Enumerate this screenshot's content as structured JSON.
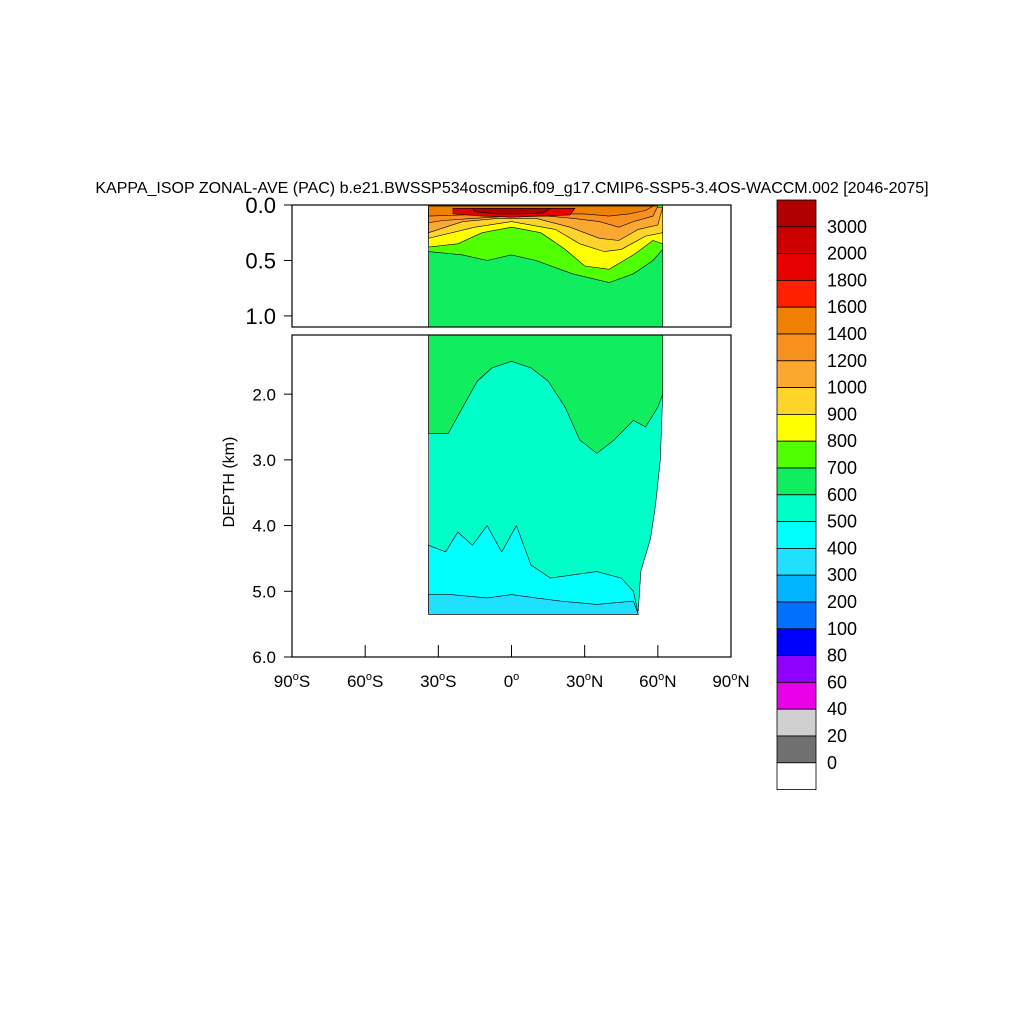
{
  "chart_data": {
    "type": "heatmap",
    "title": "KAPPA_ISOP ZONAL-AVE (PAC) b.e21.BWSSP534oscmip6.f09_g17.CMIP6-SSP5-3.4OS-WACCM.002 [2046-2075]",
    "ylabel": "DEPTH (km)",
    "xlabel": "",
    "xlim": [
      -90,
      90
    ],
    "ylim_upper": [
      0.0,
      1.1
    ],
    "ylim_lower": [
      1.1,
      6.0
    ],
    "x_ticks": [
      {
        "v": -90,
        "num": "90",
        "hemi": "S"
      },
      {
        "v": -60,
        "num": "60",
        "hemi": "S"
      },
      {
        "v": -30,
        "num": "30",
        "hemi": "S"
      },
      {
        "v": 0,
        "num": "0",
        "hemi": ""
      },
      {
        "v": 30,
        "num": "30",
        "hemi": "N"
      },
      {
        "v": 60,
        "num": "60",
        "hemi": "N"
      },
      {
        "v": 90,
        "num": "90",
        "hemi": "N"
      }
    ],
    "y_ticks_upper": [
      {
        "v": 0.0,
        "label": "0.0"
      },
      {
        "v": 0.5,
        "label": "0.5"
      },
      {
        "v": 1.0,
        "label": "1.0"
      }
    ],
    "y_ticks_lower": [
      {
        "v": 2.0,
        "label": "2.0"
      },
      {
        "v": 3.0,
        "label": "3.0"
      },
      {
        "v": 4.0,
        "label": "4.0"
      },
      {
        "v": 5.0,
        "label": "5.0"
      },
      {
        "v": 6.0,
        "label": "6.0"
      }
    ],
    "colorbar": {
      "levels": [
        "3000",
        "2000",
        "1800",
        "1600",
        "1400",
        "1200",
        "1000",
        "900",
        "800",
        "700",
        "600",
        "500",
        "400",
        "300",
        "200",
        "100",
        "80",
        "60",
        "40",
        "20",
        "0"
      ],
      "colors": [
        "#b00000",
        "#cc0000",
        "#e60000",
        "#ff2000",
        "#f08000",
        "#f89020",
        "#faa830",
        "#ffd42a",
        "#ffff00",
        "#50ff00",
        "#10ee60",
        "#00ffc8",
        "#00ffff",
        "#20e0ff",
        "#00b4ff",
        "#0070ff",
        "#0000ff",
        "#9000ff",
        "#e800e8",
        "#d0d0d0",
        "#707070",
        "#ffffff"
      ]
    },
    "regions": {
      "upper": [
        {
          "level": "700",
          "color": "#50ff00",
          "points": [
            [
              -34,
              0
            ],
            [
              62,
              0
            ],
            [
              62,
              1.1
            ],
            [
              -34,
              1.1
            ]
          ]
        },
        {
          "level": "600",
          "color": "#10ee60",
          "points": [
            [
              -34,
              0.42
            ],
            [
              -20,
              0.45
            ],
            [
              -10,
              0.5
            ],
            [
              0,
              0.45
            ],
            [
              10,
              0.5
            ],
            [
              25,
              0.62
            ],
            [
              40,
              0.7
            ],
            [
              50,
              0.62
            ],
            [
              58,
              0.5
            ],
            [
              62,
              0.4
            ],
            [
              62,
              1.1
            ],
            [
              -34,
              1.1
            ]
          ]
        },
        {
          "level": "800",
          "color": "#ffff00",
          "points": [
            [
              -34,
              0.05
            ],
            [
              62,
              0.05
            ],
            [
              62,
              0.35
            ],
            [
              58,
              0.32
            ],
            [
              50,
              0.45
            ],
            [
              40,
              0.58
            ],
            [
              30,
              0.55
            ],
            [
              22,
              0.4
            ],
            [
              12,
              0.25
            ],
            [
              0,
              0.2
            ],
            [
              -12,
              0.25
            ],
            [
              -22,
              0.35
            ],
            [
              -34,
              0.38
            ]
          ]
        },
        {
          "level": "900",
          "color": "#ffd42a",
          "points": [
            [
              -34,
              0.03
            ],
            [
              62,
              0.03
            ],
            [
              62,
              0.25
            ],
            [
              55,
              0.28
            ],
            [
              45,
              0.4
            ],
            [
              38,
              0.42
            ],
            [
              28,
              0.35
            ],
            [
              18,
              0.22
            ],
            [
              0,
              0.15
            ],
            [
              -15,
              0.2
            ],
            [
              -34,
              0.3
            ]
          ]
        },
        {
          "level": "1000",
          "color": "#faa830",
          "points": [
            [
              -34,
              0.02
            ],
            [
              62,
              0.02
            ],
            [
              60,
              0.18
            ],
            [
              52,
              0.22
            ],
            [
              44,
              0.32
            ],
            [
              36,
              0.3
            ],
            [
              24,
              0.2
            ],
            [
              10,
              0.12
            ],
            [
              -5,
              0.12
            ],
            [
              -20,
              0.15
            ],
            [
              -34,
              0.25
            ]
          ]
        },
        {
          "level": "1200",
          "color": "#f89020",
          "points": [
            [
              -34,
              0.01
            ],
            [
              60,
              0.01
            ],
            [
              58,
              0.1
            ],
            [
              50,
              0.15
            ],
            [
              44,
              0.2
            ],
            [
              36,
              0.15
            ],
            [
              25,
              0.12
            ],
            [
              15,
              0.1
            ],
            [
              0,
              0.1
            ],
            [
              -15,
              0.12
            ],
            [
              -28,
              0.14
            ],
            [
              -34,
              0.16
            ]
          ]
        },
        {
          "level": "1400",
          "color": "#f08000",
          "points": [
            [
              -34,
              0.01
            ],
            [
              58,
              0.01
            ],
            [
              55,
              0.05
            ],
            [
              48,
              0.08
            ],
            [
              40,
              0.1
            ],
            [
              30,
              0.08
            ],
            [
              20,
              0.08
            ],
            [
              10,
              0.08
            ],
            [
              -5,
              0.08
            ],
            [
              -20,
              0.09
            ],
            [
              -34,
              0.1
            ]
          ]
        },
        {
          "level": "1800",
          "color": "#e60000",
          "points": [
            [
              -24,
              0.03
            ],
            [
              26,
              0.03
            ],
            [
              24,
              0.09
            ],
            [
              12,
              0.1
            ],
            [
              0,
              0.11
            ],
            [
              -12,
              0.1
            ],
            [
              -24,
              0.08
            ]
          ]
        },
        {
          "level": "3000",
          "color": "#b00000",
          "points": [
            [
              -16,
              0.03
            ],
            [
              16,
              0.03
            ],
            [
              13,
              0.07
            ],
            [
              4,
              0.08
            ],
            [
              -6,
              0.08
            ],
            [
              -15,
              0.06
            ]
          ]
        }
      ],
      "lower": [
        {
          "level": "500",
          "color": "#00ffc8",
          "points": [
            [
              -34,
              1.1
            ],
            [
              62,
              1.1
            ],
            [
              62,
              2.0
            ],
            [
              61,
              3.0
            ],
            [
              59,
              3.7
            ],
            [
              57,
              4.2
            ],
            [
              53,
              4.7
            ],
            [
              52,
              5.3
            ],
            [
              -34,
              5.3
            ]
          ]
        },
        {
          "level": "600",
          "color": "#10ee60",
          "points": [
            [
              -34,
              1.1
            ],
            [
              62,
              1.1
            ],
            [
              62,
              2.0
            ],
            [
              60,
              2.2
            ],
            [
              55,
              2.5
            ],
            [
              50,
              2.4
            ],
            [
              42,
              2.7
            ],
            [
              35,
              2.9
            ],
            [
              28,
              2.7
            ],
            [
              22,
              2.2
            ],
            [
              15,
              1.8
            ],
            [
              8,
              1.6
            ],
            [
              0,
              1.5
            ],
            [
              -8,
              1.6
            ],
            [
              -14,
              1.8
            ],
            [
              -20,
              2.2
            ],
            [
              -26,
              2.6
            ],
            [
              -34,
              2.6
            ]
          ]
        },
        {
          "level": "400",
          "color": "#00ffff",
          "points": [
            [
              -34,
              4.3
            ],
            [
              -27,
              4.4
            ],
            [
              -22,
              4.1
            ],
            [
              -16,
              4.3
            ],
            [
              -10,
              4.0
            ],
            [
              -4,
              4.4
            ],
            [
              2,
              4.0
            ],
            [
              8,
              4.6
            ],
            [
              16,
              4.8
            ],
            [
              25,
              4.75
            ],
            [
              35,
              4.7
            ],
            [
              45,
              4.8
            ],
            [
              50,
              5.0
            ],
            [
              52,
              5.35
            ],
            [
              -34,
              5.35
            ]
          ]
        },
        {
          "level": "300",
          "color": "#20e0ff",
          "points": [
            [
              -34,
              5.05
            ],
            [
              -25,
              5.05
            ],
            [
              -10,
              5.1
            ],
            [
              0,
              5.05
            ],
            [
              10,
              5.1
            ],
            [
              20,
              5.15
            ],
            [
              35,
              5.2
            ],
            [
              50,
              5.15
            ],
            [
              52,
              5.35
            ],
            [
              -34,
              5.35
            ]
          ]
        }
      ]
    }
  }
}
